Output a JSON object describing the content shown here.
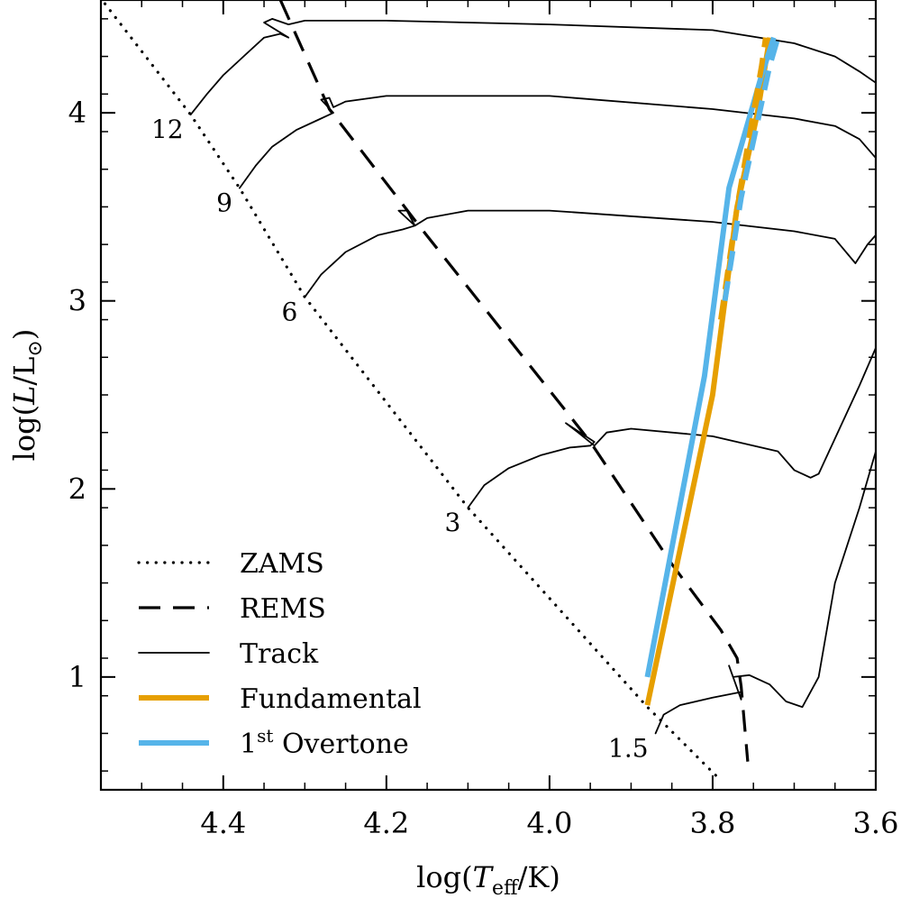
{
  "chart_data": {
    "type": "line",
    "title": "",
    "xlabel": "log(T_eff/K)",
    "ylabel": "log(L/L_⊙)",
    "xlim": [
      4.55,
      3.6
    ],
    "ylim": [
      0.4,
      4.6
    ],
    "x_inverted": true,
    "xticks": [
      4.4,
      4.2,
      4.0,
      3.8,
      3.6
    ],
    "xtick_labels": [
      "4.4",
      "4.2",
      "4.0",
      "3.8",
      "3.6"
    ],
    "yticks": [
      1,
      2,
      3,
      4
    ],
    "ytick_labels": [
      "1",
      "2",
      "3",
      "4"
    ],
    "grid": false,
    "legend_position": "bottom-left",
    "legend": [
      {
        "label": "ZAMS",
        "style": "dotted",
        "color": "#000000"
      },
      {
        "label": "REMS",
        "style": "dashed",
        "color": "#000000"
      },
      {
        "label": "Track",
        "style": "solid-thin",
        "color": "#000000"
      },
      {
        "label": "Fundamental",
        "style": "solid-thick",
        "color": "#E69F00"
      },
      {
        "label": "1st Overtone",
        "label_base": "1",
        "label_sup": "st",
        "label_rest": " Overtone",
        "style": "solid-thick",
        "color": "#56B4E9"
      }
    ],
    "series": [
      {
        "name": "ZAMS",
        "style": "dotted",
        "color": "#000000",
        "x": [
          4.545,
          4.44,
          4.38,
          4.3,
          4.1,
          3.88,
          3.79
        ],
        "y": [
          4.58,
          3.99,
          3.6,
          3.02,
          1.9,
          0.84,
          0.45
        ]
      },
      {
        "name": "REMS",
        "style": "dashed",
        "color": "#000000",
        "x": [
          4.33,
          4.27,
          4.16,
          3.95,
          3.85,
          3.79,
          3.77,
          3.765,
          3.757
        ],
        "y": [
          4.6,
          4.02,
          3.4,
          2.25,
          1.6,
          1.25,
          1.1,
          0.95,
          0.55
        ]
      },
      {
        "name": "Track 12",
        "mass_label": "12",
        "style": "solid-thin",
        "color": "#000000",
        "x": [
          4.44,
          4.42,
          4.4,
          4.37,
          4.35,
          4.33,
          4.32,
          4.35,
          4.34,
          4.32,
          4.3,
          4.2,
          4.0,
          3.8,
          3.7,
          3.65,
          3.62,
          3.6
        ],
        "y": [
          3.99,
          4.1,
          4.2,
          4.32,
          4.4,
          4.42,
          4.4,
          4.48,
          4.5,
          4.47,
          4.49,
          4.49,
          4.47,
          4.44,
          4.37,
          4.3,
          4.22,
          4.16
        ]
      },
      {
        "name": "Track 9",
        "mass_label": "9",
        "style": "solid-thin",
        "color": "#000000",
        "x": [
          4.38,
          4.36,
          4.34,
          4.31,
          4.285,
          4.27,
          4.265,
          4.28,
          4.27,
          4.265,
          4.25,
          4.2,
          4.0,
          3.8,
          3.7,
          3.65,
          3.62,
          3.6
        ],
        "y": [
          3.6,
          3.72,
          3.82,
          3.91,
          3.96,
          3.99,
          4.0,
          4.07,
          4.08,
          4.03,
          4.06,
          4.09,
          4.09,
          4.02,
          3.97,
          3.93,
          3.86,
          3.76
        ]
      },
      {
        "name": "Track 6",
        "mass_label": "6",
        "style": "solid-thin",
        "color": "#000000",
        "x": [
          4.3,
          4.28,
          4.25,
          4.21,
          4.18,
          4.165,
          4.185,
          4.175,
          4.165,
          4.15,
          4.1,
          4.0,
          3.8,
          3.7,
          3.65,
          3.625,
          3.61,
          3.6
        ],
        "y": [
          3.02,
          3.14,
          3.26,
          3.35,
          3.38,
          3.4,
          3.48,
          3.48,
          3.4,
          3.44,
          3.48,
          3.48,
          3.42,
          3.37,
          3.33,
          3.2,
          3.3,
          3.35
        ]
      },
      {
        "name": "Track 3",
        "mass_label": "3",
        "style": "solid-thin",
        "color": "#000000",
        "x": [
          4.1,
          4.08,
          4.05,
          4.01,
          3.975,
          3.95,
          3.945,
          3.98,
          3.965,
          3.945,
          3.93,
          3.9,
          3.8,
          3.72,
          3.7,
          3.68,
          3.67,
          3.62,
          3.6
        ],
        "y": [
          1.9,
          2.02,
          2.11,
          2.18,
          2.22,
          2.23,
          2.25,
          2.35,
          2.3,
          2.23,
          2.3,
          2.32,
          2.28,
          2.2,
          2.1,
          2.06,
          2.08,
          2.55,
          2.75
        ]
      },
      {
        "name": "Track 1.5",
        "mass_label": "1.5",
        "style": "solid-thin",
        "color": "#000000",
        "x": [
          3.87,
          3.86,
          3.84,
          3.8,
          3.765,
          3.765,
          3.78,
          3.775,
          3.755,
          3.73,
          3.71,
          3.69,
          3.67,
          3.65,
          3.62,
          3.6
        ],
        "y": [
          0.7,
          0.8,
          0.85,
          0.89,
          0.92,
          0.88,
          1.06,
          1.0,
          1.01,
          0.96,
          0.87,
          0.84,
          1.0,
          1.5,
          1.9,
          2.2
        ]
      },
      {
        "name": "Fundamental",
        "style": "solid-thick",
        "color": "#E69F00",
        "x": [
          3.88,
          3.8,
          3.77,
          3.745,
          3.73
        ],
        "y": [
          0.85,
          2.5,
          3.5,
          4.0,
          4.4
        ]
      },
      {
        "name": "1st Overtone",
        "style": "solid-thick",
        "color": "#56B4E9",
        "x": [
          3.88,
          3.81,
          3.78,
          3.74,
          3.725
        ],
        "y": [
          1.0,
          2.6,
          3.6,
          4.2,
          4.4
        ]
      },
      {
        "name": "Fundamental (dashed)",
        "style": "dashed-thick",
        "color": "#E69F00",
        "x": [
          3.79,
          3.77,
          3.74,
          3.735
        ],
        "y": [
          2.9,
          3.5,
          4.25,
          4.4
        ]
      },
      {
        "name": "1st Overtone (dashed)",
        "style": "dashed-thick",
        "color": "#56B4E9",
        "x": [
          3.785,
          3.765,
          3.73,
          3.72
        ],
        "y": [
          3.0,
          3.55,
          4.25,
          4.4
        ]
      }
    ],
    "annotations": [
      {
        "text": "12",
        "x": 4.44,
        "y": 3.99
      },
      {
        "text": "9",
        "x": 4.38,
        "y": 3.6
      },
      {
        "text": "6",
        "x": 4.3,
        "y": 3.02
      },
      {
        "text": "3",
        "x": 4.1,
        "y": 1.9
      },
      {
        "text": "1.5",
        "x": 3.87,
        "y": 0.7
      }
    ]
  }
}
